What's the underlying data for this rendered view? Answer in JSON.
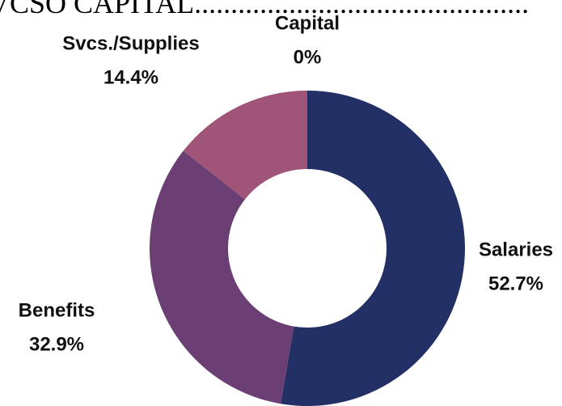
{
  "chart_data": {
    "type": "donut",
    "title": "VCSO CAPITAL..............................................",
    "categories": [
      "Salaries",
      "Benefits",
      "Svcs./Supplies",
      "Capital"
    ],
    "values": [
      52.7,
      32.9,
      14.4,
      0
    ],
    "value_labels": [
      "52.7%",
      "32.9%",
      "14.4%",
      "0%"
    ],
    "colors": [
      "#223066",
      "#6b3f74",
      "#a05478",
      "#c86a7e"
    ]
  }
}
